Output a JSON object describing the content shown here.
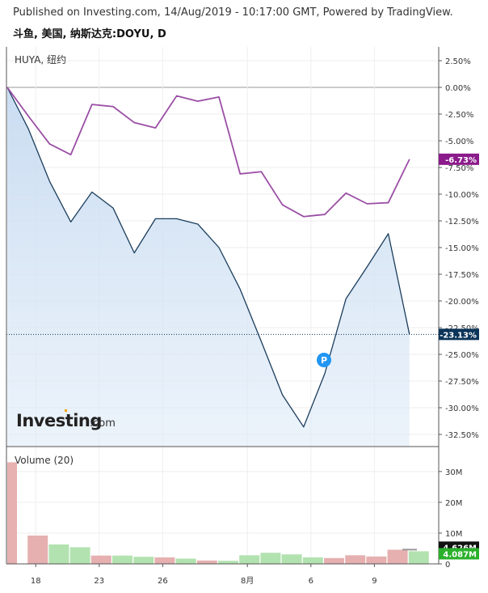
{
  "header": {
    "published": "Published on Investing.com, 14/Aug/2019 - 10:17:00 GMT, Powered by TradingView.",
    "symbol": "斗鱼, 美国, 纳斯达克:DOYU, D"
  },
  "colors": {
    "main_line": "#1b3d5c",
    "main_fill": "#dce9f7",
    "compare_line": "#9b4fa5",
    "compare_badge": "#8b1a8b",
    "main_badge": "#0b3458",
    "vol_up": "#b2e2b0",
    "vol_down": "#e6b0b0",
    "vol_badge_a": "#111111",
    "vol_badge_b": "#2bb02b",
    "marker": "#2196f3"
  },
  "icons": {
    "marker": "circle-p-icon",
    "logo": "investing-logo"
  },
  "chart_data": [
    {
      "type": "line",
      "legend": "HUYA, 纽约",
      "ylabel": "",
      "ylim": [
        -34,
        3.5
      ],
      "yticks": [
        2.5,
        0,
        -2.5,
        -5,
        -7.5,
        -10,
        -12.5,
        -15,
        -17.5,
        -20,
        -22.5,
        -25,
        -27.5,
        -30,
        -32.5
      ],
      "ytick_labels": [
        "2.50%",
        "0.00%",
        "-2.50%",
        "-5.00%",
        "-7.50%",
        "-10.00%",
        "-12.50%",
        "-15.00%",
        "-17.50%",
        "-20.00%",
        "-22.50%",
        "-25.00%",
        "-27.50%",
        "-30.00%",
        "-32.50%"
      ],
      "xtick_labels": [
        "18",
        "23",
        "26",
        "8月",
        "6",
        "9"
      ],
      "xtick_index": [
        1,
        4,
        7,
        11,
        14,
        17
      ],
      "series": [
        {
          "name": "DOYU",
          "values": [
            0,
            -3.9,
            -8.8,
            -12.6,
            -9.8,
            -11.3,
            -15.5,
            -12.3,
            -12.3,
            -12.8,
            -15.0,
            -18.9,
            -23.8,
            -28.8,
            -31.8,
            -26.8,
            -19.8,
            -16.8,
            -13.7,
            -23.13
          ],
          "last_label": "-23.13%"
        },
        {
          "name": "HUYA",
          "values": [
            0,
            -2.7,
            -5.3,
            -6.3,
            -1.6,
            -1.8,
            -3.3,
            -3.8,
            -0.8,
            -1.3,
            -0.9,
            -8.1,
            -7.9,
            -11.0,
            -12.1,
            -11.9,
            -9.9,
            -10.9,
            -10.8,
            -6.73
          ],
          "last_label": "-6.73%"
        }
      ],
      "marker_label": "P",
      "marker_index": 15,
      "marker_value": -25.0
    },
    {
      "type": "bar",
      "legend": "Volume (20)",
      "ylim": [
        0,
        36
      ],
      "yticks": [
        0,
        10,
        20,
        30
      ],
      "ytick_labels": [
        "0",
        "10M",
        "20M",
        "30M"
      ],
      "values": [
        33,
        9.2,
        6.3,
        5.4,
        2.7,
        2.7,
        2.3,
        2.1,
        1.7,
        1.1,
        1.0,
        2.8,
        3.6,
        3.1,
        2.1,
        1.9,
        2.8,
        2.4,
        4.6,
        4.1
      ],
      "colors": [
        "down",
        "down",
        "up",
        "up",
        "down",
        "up",
        "up",
        "down",
        "up",
        "down",
        "up",
        "up",
        "up",
        "up",
        "up",
        "down",
        "down",
        "down",
        "down",
        "up"
      ],
      "badges": [
        "4.626M",
        "4.087M"
      ],
      "badge_values": [
        4.626,
        4.087
      ]
    }
  ]
}
